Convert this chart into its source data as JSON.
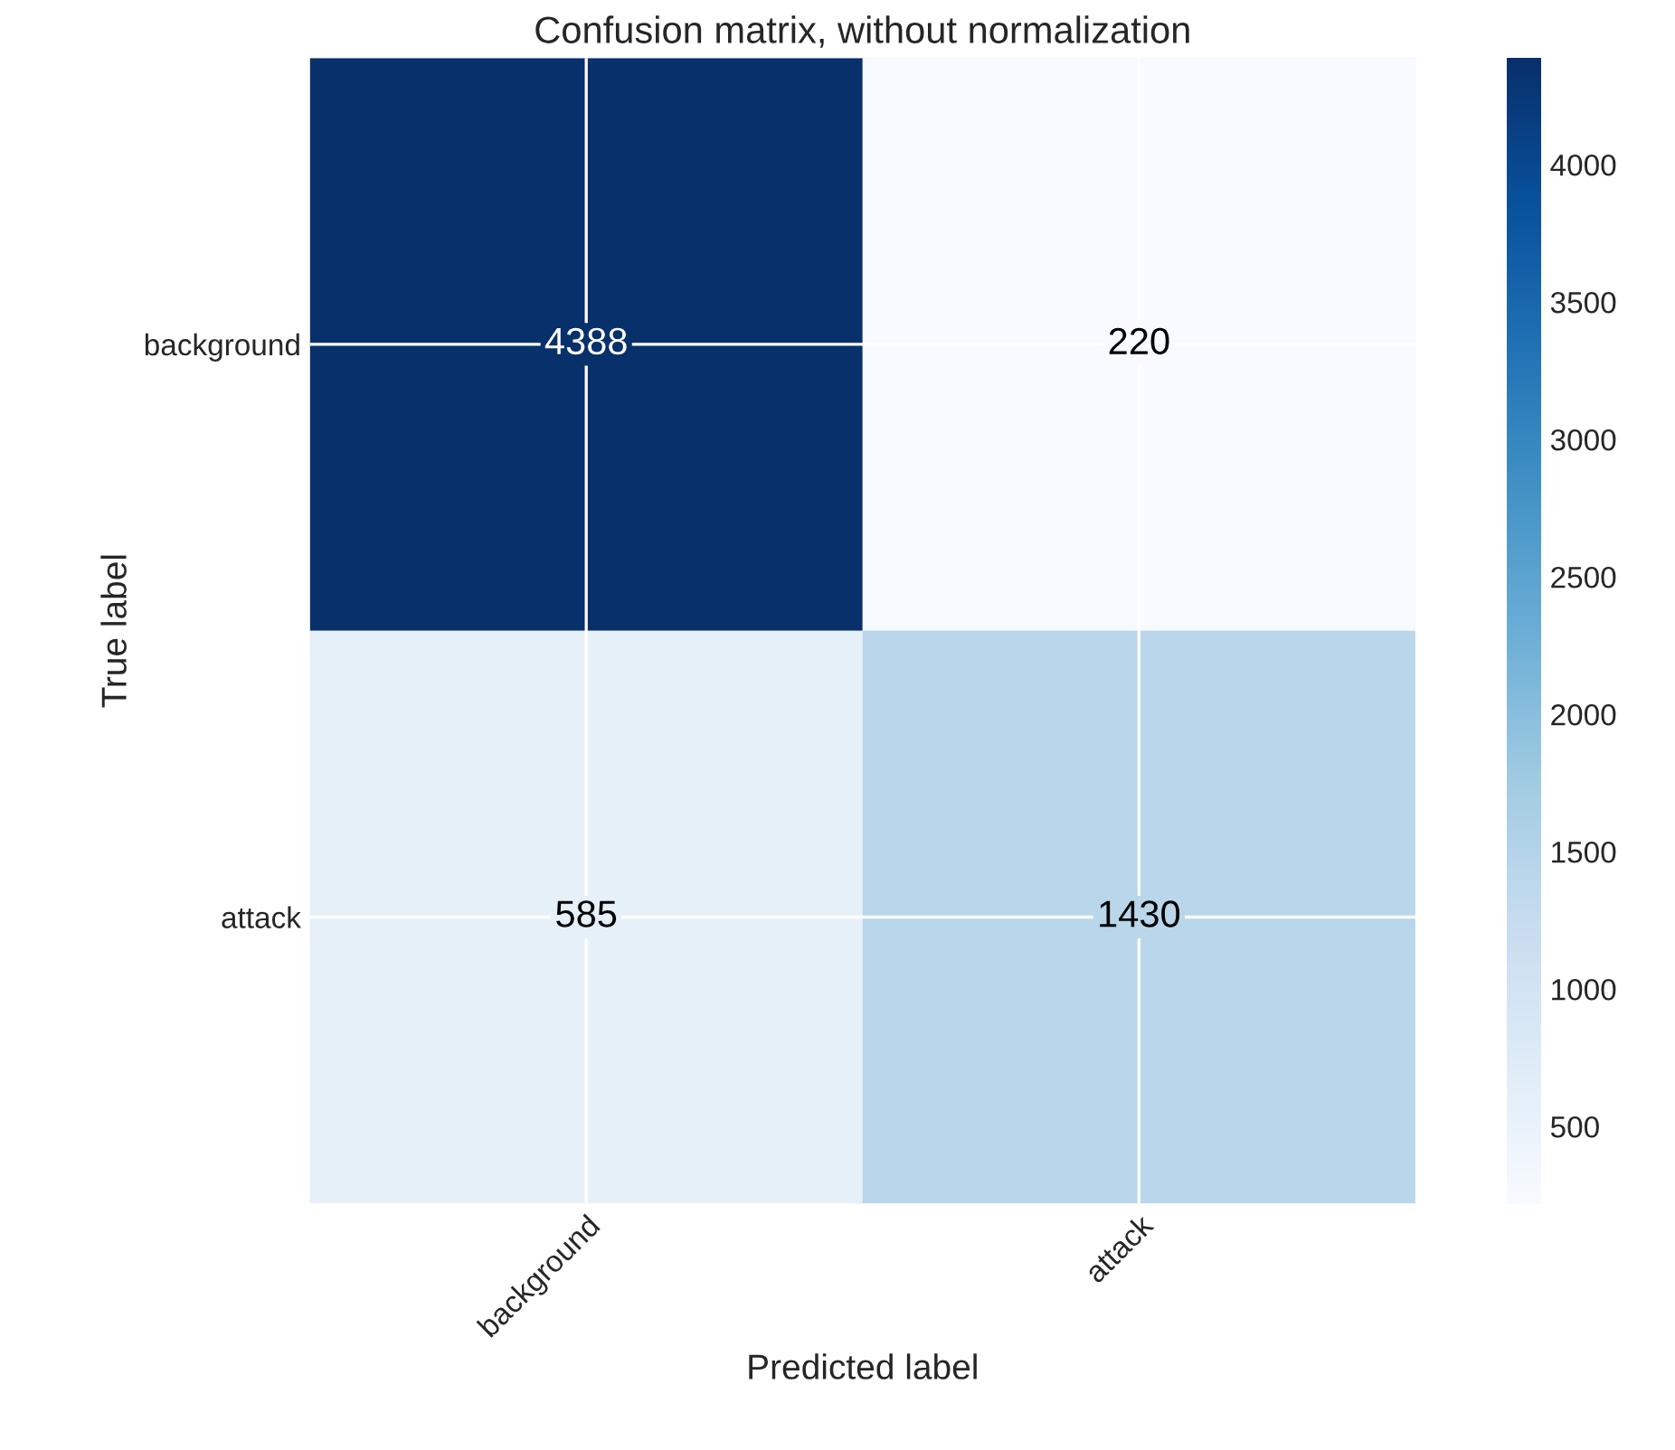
{
  "chart_data": {
    "type": "heatmap",
    "title": "Confusion matrix, without normalization",
    "xlabel": "Predicted label",
    "ylabel": "True label",
    "categories": [
      "background",
      "attack"
    ],
    "y_categories": [
      "background",
      "attack"
    ],
    "cells": [
      [
        4388,
        220
      ],
      [
        585,
        1430
      ]
    ],
    "clim": [
      220,
      4388
    ],
    "cticks": [
      500,
      1000,
      1500,
      2000,
      2500,
      3000,
      3500,
      4000
    ],
    "grid": true,
    "data_labels": true
  }
}
